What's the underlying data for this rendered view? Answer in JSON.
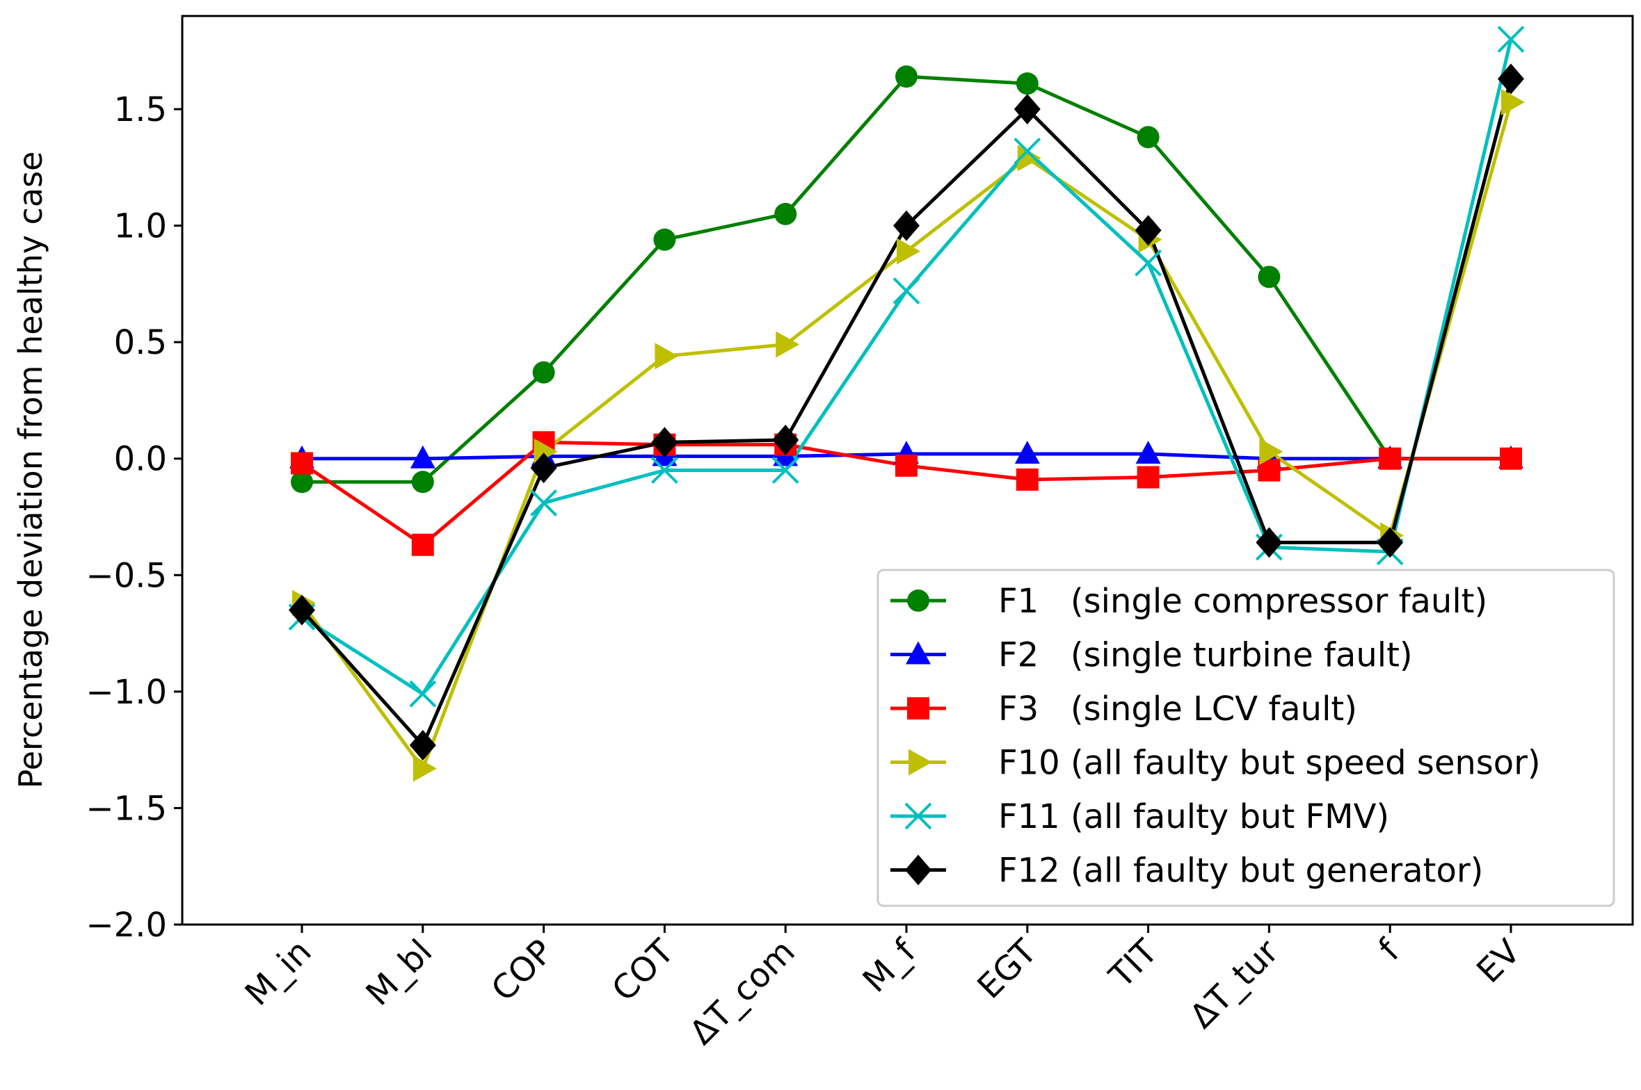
{
  "chart_data": {
    "type": "line",
    "title": "",
    "xlabel": "",
    "ylabel": "Percentage deviation from healthy case",
    "ylim": [
      -2.0,
      1.9
    ],
    "yticks": [
      -2.0,
      -1.5,
      -1.0,
      -0.5,
      0.0,
      0.5,
      1.0,
      1.5
    ],
    "ytick_labels": [
      "−2.0",
      "−1.5",
      "−1.0",
      "−0.5",
      "0.0",
      "0.5",
      "1.0",
      "1.5"
    ],
    "categories": [
      "M_in",
      "M_bl",
      "COP",
      "COT",
      "ΔT_com",
      "M_f",
      "EGT",
      "TIT",
      "ΔT_tur",
      "f",
      "EV"
    ],
    "grid": false,
    "legend_position": "bottom-right",
    "series": [
      {
        "name": "F1   (single compressor fault)",
        "color": "#008000",
        "marker": "circle",
        "values": [
          -0.1,
          -0.1,
          0.37,
          0.94,
          1.05,
          1.64,
          1.61,
          1.38,
          0.78,
          0.0,
          0.0
        ]
      },
      {
        "name": "F2   (single turbine fault)",
        "color": "#0000ff",
        "marker": "triangle-up",
        "values": [
          0.0,
          0.0,
          0.01,
          0.01,
          0.01,
          0.02,
          0.02,
          0.02,
          0.0,
          0.0,
          0.0
        ]
      },
      {
        "name": "F3   (single LCV fault)",
        "color": "#ff0000",
        "marker": "square",
        "values": [
          -0.02,
          -0.37,
          0.07,
          0.06,
          0.06,
          -0.03,
          -0.09,
          -0.08,
          -0.05,
          0.0,
          0.0
        ]
      },
      {
        "name": "F10 (all faulty but speed sensor)",
        "color": "#bfbf00",
        "marker": "triangle-right",
        "values": [
          -0.62,
          -1.33,
          0.03,
          0.44,
          0.49,
          0.89,
          1.29,
          0.94,
          0.03,
          -0.33,
          1.53
        ]
      },
      {
        "name": "F11 (all faulty but FMV)",
        "color": "#00bfbf",
        "marker": "x",
        "values": [
          -0.68,
          -1.01,
          -0.19,
          -0.05,
          -0.05,
          0.72,
          1.32,
          0.84,
          -0.38,
          -0.4,
          1.8
        ]
      },
      {
        "name": "F12 (all faulty but generator)",
        "color": "#000000",
        "marker": "diamond",
        "values": [
          -0.65,
          -1.23,
          -0.04,
          0.07,
          0.08,
          1.0,
          1.5,
          0.98,
          -0.36,
          -0.36,
          1.63
        ]
      }
    ]
  }
}
